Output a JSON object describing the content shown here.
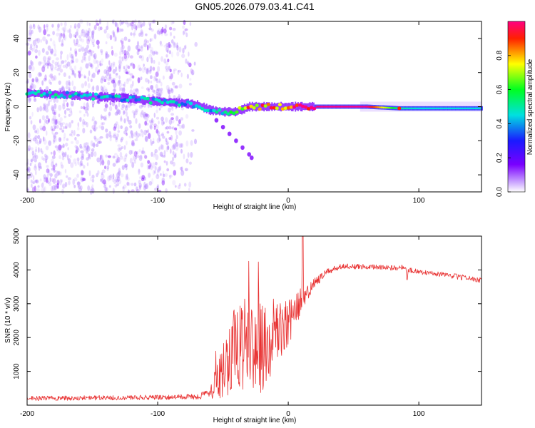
{
  "title": "GN05.2026.079.03.41.C41",
  "chart_data": [
    {
      "type": "heatmap",
      "name": "spectrogram",
      "xlabel": "Height of straight line (km)",
      "ylabel": "Frequency (Hz)",
      "xlim": [
        -200,
        148
      ],
      "ylim": [
        -50,
        50
      ],
      "x_ticks": [
        -200,
        -100,
        0,
        100
      ],
      "x_tick_labels": [
        "-200",
        "-100",
        "0",
        "100"
      ],
      "y_ticks": [
        40,
        20,
        0,
        -20,
        -40
      ],
      "y_tick_labels": [
        "40",
        "20",
        "0",
        "-20",
        "-40"
      ],
      "colorbar": {
        "label": "Normalized spectral amplitude",
        "range": [
          0,
          1
        ],
        "ticks": [
          0.0,
          0.2,
          0.4,
          0.6,
          0.8
        ],
        "tick_labels": [
          "0.0",
          "0.2",
          "0.4",
          "0.6",
          "0.8"
        ]
      },
      "ridge": {
        "x": [
          -200,
          -175,
          -150,
          -125,
          -100,
          -80,
          -70,
          -60,
          -50,
          -40,
          -30,
          -20,
          -10,
          0,
          10,
          30,
          60,
          85,
          100,
          148
        ],
        "frequency": [
          8,
          7,
          6,
          5,
          3,
          2,
          1,
          -2,
          -3,
          -3,
          0,
          0,
          0,
          0,
          0,
          0,
          0,
          -1,
          -1,
          -1
        ],
        "amplitude": [
          0.5,
          0.5,
          0.45,
          0.45,
          0.45,
          0.45,
          0.45,
          0.45,
          0.5,
          0.55,
          0.85,
          0.9,
          0.95,
          0.95,
          1.0,
          1.0,
          1.0,
          0.5,
          0.45,
          0.45
        ]
      },
      "branch": {
        "x": [
          -55,
          -50,
          -45,
          -40,
          -35,
          -30,
          -28
        ],
        "frequency": [
          -8,
          -12,
          -16,
          -20,
          -24,
          -28,
          -30
        ]
      },
      "noise_region": {
        "x": [
          -200,
          -68
        ],
        "frequency": [
          -50,
          50
        ],
        "amplitude": 0.1
      }
    },
    {
      "type": "line",
      "name": "snr",
      "xlabel": "Height of straight line (km)",
      "ylabel": "SNR (10 * v/v)",
      "xlim": [
        -200,
        148
      ],
      "ylim": [
        0,
        5000
      ],
      "x_ticks": [
        -200,
        -100,
        0,
        100
      ],
      "x_tick_labels": [
        "-200",
        "-100",
        "0",
        "100"
      ],
      "y_ticks": [
        1000,
        2000,
        3000,
        4000,
        5000
      ],
      "y_tick_labels": [
        "1000",
        "2000",
        "3000",
        "4000",
        "5000"
      ],
      "color": "#e83030",
      "envelope": {
        "x": [
          -200,
          -100,
          -70,
          -60,
          -55,
          -50,
          -40,
          -30,
          -20,
          -15,
          -10,
          -5,
          0,
          5,
          10,
          20,
          30,
          40,
          60,
          80,
          90,
          91,
          92,
          100,
          120,
          148
        ],
        "mean": [
          200,
          230,
          250,
          350,
          700,
          1000,
          1700,
          1900,
          1700,
          1700,
          2000,
          2300,
          2400,
          2800,
          3000,
          3600,
          3950,
          4100,
          4100,
          4050,
          4100,
          3650,
          4000,
          3950,
          3850,
          3700
        ],
        "spread": [
          70,
          70,
          80,
          150,
          500,
          900,
          1300,
          1400,
          1400,
          1200,
          1000,
          900,
          700,
          500,
          350,
          150,
          90,
          80,
          80,
          80,
          80,
          60,
          80,
          80,
          80,
          80
        ]
      },
      "peak": {
        "x": 11,
        "y": 5000
      }
    }
  ]
}
